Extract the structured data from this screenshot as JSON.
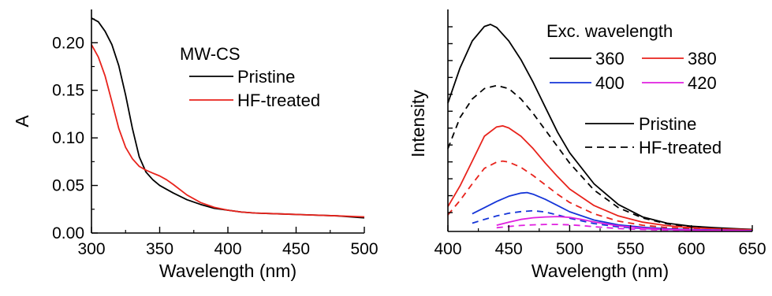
{
  "chart_data": [
    {
      "type": "line",
      "title": "",
      "xlabel": "Wavelength (nm)",
      "ylabel": "A",
      "xlim": [
        300,
        500
      ],
      "ylim": [
        0,
        0.235
      ],
      "x_ticks": [
        300,
        350,
        400,
        450,
        500
      ],
      "y_ticks": [
        0.0,
        0.05,
        0.1,
        0.15,
        0.2
      ],
      "y_tick_labels": [
        "0.00",
        "0.05",
        "0.10",
        "0.15",
        "0.20"
      ],
      "grid": false,
      "legend": {
        "title": "MW-CS",
        "placement": "top-right",
        "entries": [
          {
            "label": "Pristine",
            "color": "#000000",
            "dash": "solid"
          },
          {
            "label": "HF-treated",
            "color": "#e8231c",
            "dash": "solid"
          }
        ]
      },
      "series": [
        {
          "name": "Pristine",
          "color": "#000000",
          "x": [
            300,
            305,
            310,
            315,
            320,
            325,
            330,
            335,
            340,
            345,
            350,
            355,
            360,
            370,
            380,
            390,
            400,
            410,
            420,
            440,
            460,
            480,
            500
          ],
          "y": [
            0.226,
            0.222,
            0.212,
            0.198,
            0.176,
            0.145,
            0.11,
            0.08,
            0.064,
            0.056,
            0.05,
            0.046,
            0.042,
            0.035,
            0.03,
            0.026,
            0.024,
            0.022,
            0.021,
            0.02,
            0.019,
            0.018,
            0.016
          ]
        },
        {
          "name": "HF-treated",
          "color": "#e8231c",
          "x": [
            300,
            305,
            310,
            315,
            320,
            325,
            330,
            335,
            340,
            345,
            350,
            355,
            360,
            370,
            380,
            390,
            400,
            410,
            420,
            440,
            460,
            480,
            500
          ],
          "y": [
            0.198,
            0.185,
            0.165,
            0.138,
            0.11,
            0.09,
            0.078,
            0.07,
            0.066,
            0.063,
            0.06,
            0.056,
            0.051,
            0.04,
            0.032,
            0.027,
            0.024,
            0.022,
            0.021,
            0.02,
            0.019,
            0.018,
            0.017
          ]
        }
      ]
    },
    {
      "type": "line",
      "title": "",
      "xlabel": "Wavelength (nm)",
      "ylabel": "Intensity",
      "xlim": [
        400,
        650
      ],
      "ylim": [
        0,
        1.0
      ],
      "x_ticks": [
        400,
        450,
        500,
        550,
        600,
        650
      ],
      "y_tick_count": 12,
      "y_tick_labels_shown": false,
      "grid": false,
      "legend": {
        "title": "Exc. wavelength",
        "placement": "top-right",
        "entries": [
          {
            "label": "360",
            "color": "#000000"
          },
          {
            "label": "380",
            "color": "#e8231c"
          },
          {
            "label": "400",
            "color": "#1535d8"
          },
          {
            "label": "420",
            "color": "#e020e0"
          }
        ],
        "style_entries": [
          {
            "label": "Pristine",
            "dash": "solid"
          },
          {
            "label": "HF-treated",
            "dash": "dashed"
          }
        ]
      },
      "series": [
        {
          "exc": "360",
          "sample": "Pristine",
          "color": "#000000",
          "dash": "solid",
          "x": [
            400,
            410,
            420,
            430,
            435,
            440,
            450,
            460,
            470,
            480,
            490,
            500,
            520,
            540,
            560,
            580,
            600,
            620,
            640,
            650
          ],
          "y": [
            0.62,
            0.79,
            0.92,
            0.99,
            1.0,
            0.985,
            0.92,
            0.83,
            0.72,
            0.6,
            0.48,
            0.38,
            0.23,
            0.13,
            0.07,
            0.04,
            0.025,
            0.018,
            0.012,
            0.01
          ]
        },
        {
          "exc": "360",
          "sample": "HF-treated",
          "color": "#000000",
          "dash": "dashed",
          "x": [
            400,
            410,
            420,
            430,
            440,
            450,
            460,
            470,
            480,
            490,
            500,
            520,
            540,
            560,
            580,
            600,
            620,
            640,
            650
          ],
          "y": [
            0.4,
            0.55,
            0.64,
            0.69,
            0.705,
            0.69,
            0.64,
            0.57,
            0.49,
            0.41,
            0.33,
            0.2,
            0.115,
            0.065,
            0.037,
            0.022,
            0.015,
            0.01,
            0.008
          ]
        },
        {
          "exc": "380",
          "sample": "Pristine",
          "color": "#e8231c",
          "dash": "solid",
          "x": [
            400,
            410,
            420,
            430,
            440,
            445,
            450,
            460,
            470,
            480,
            490,
            500,
            520,
            540,
            560,
            580,
            600,
            620,
            640,
            650
          ],
          "y": [
            0.12,
            0.22,
            0.34,
            0.46,
            0.505,
            0.51,
            0.5,
            0.46,
            0.4,
            0.33,
            0.265,
            0.205,
            0.125,
            0.075,
            0.045,
            0.028,
            0.018,
            0.013,
            0.01,
            0.008
          ]
        },
        {
          "exc": "380",
          "sample": "HF-treated",
          "color": "#e8231c",
          "dash": "dashed",
          "x": [
            400,
            410,
            420,
            430,
            440,
            445,
            450,
            460,
            470,
            480,
            490,
            500,
            520,
            540,
            560,
            580,
            600,
            620,
            640,
            650
          ],
          "y": [
            0.08,
            0.15,
            0.23,
            0.305,
            0.335,
            0.34,
            0.335,
            0.31,
            0.27,
            0.225,
            0.18,
            0.14,
            0.085,
            0.05,
            0.03,
            0.019,
            0.013,
            0.01,
            0.008,
            0.006
          ]
        },
        {
          "exc": "400",
          "sample": "Pristine",
          "color": "#1535d8",
          "dash": "solid",
          "x": [
            420,
            430,
            440,
            450,
            460,
            465,
            470,
            480,
            490,
            500,
            520,
            540,
            560,
            580,
            600,
            620,
            640,
            650
          ],
          "y": [
            0.085,
            0.115,
            0.145,
            0.17,
            0.185,
            0.188,
            0.18,
            0.155,
            0.125,
            0.095,
            0.055,
            0.032,
            0.02,
            0.013,
            0.009,
            0.007,
            0.005,
            0.004
          ]
        },
        {
          "exc": "400",
          "sample": "HF-treated",
          "color": "#1535d8",
          "dash": "dashed",
          "x": [
            420,
            430,
            440,
            450,
            460,
            470,
            480,
            490,
            500,
            520,
            540,
            560,
            580,
            600,
            620,
            640,
            650
          ],
          "y": [
            0.04,
            0.058,
            0.075,
            0.088,
            0.096,
            0.1,
            0.094,
            0.08,
            0.064,
            0.038,
            0.022,
            0.014,
            0.009,
            0.006,
            0.005,
            0.004,
            0.003
          ]
        },
        {
          "exc": "420",
          "sample": "Pristine",
          "color": "#e020e0",
          "dash": "solid",
          "x": [
            440,
            450,
            460,
            470,
            480,
            490,
            500,
            510,
            520,
            540,
            560,
            580,
            600,
            620,
            640,
            650
          ],
          "y": [
            0.03,
            0.045,
            0.058,
            0.066,
            0.07,
            0.072,
            0.068,
            0.058,
            0.046,
            0.027,
            0.016,
            0.01,
            0.007,
            0.005,
            0.004,
            0.003
          ]
        },
        {
          "exc": "420",
          "sample": "HF-treated",
          "color": "#e020e0",
          "dash": "dashed",
          "x": [
            440,
            450,
            460,
            470,
            480,
            490,
            500,
            510,
            520,
            540,
            560,
            580,
            600,
            620,
            640,
            650
          ],
          "y": [
            0.018,
            0.024,
            0.029,
            0.032,
            0.034,
            0.034,
            0.032,
            0.028,
            0.023,
            0.014,
            0.009,
            0.006,
            0.004,
            0.003,
            0.003,
            0.002
          ]
        }
      ]
    }
  ]
}
